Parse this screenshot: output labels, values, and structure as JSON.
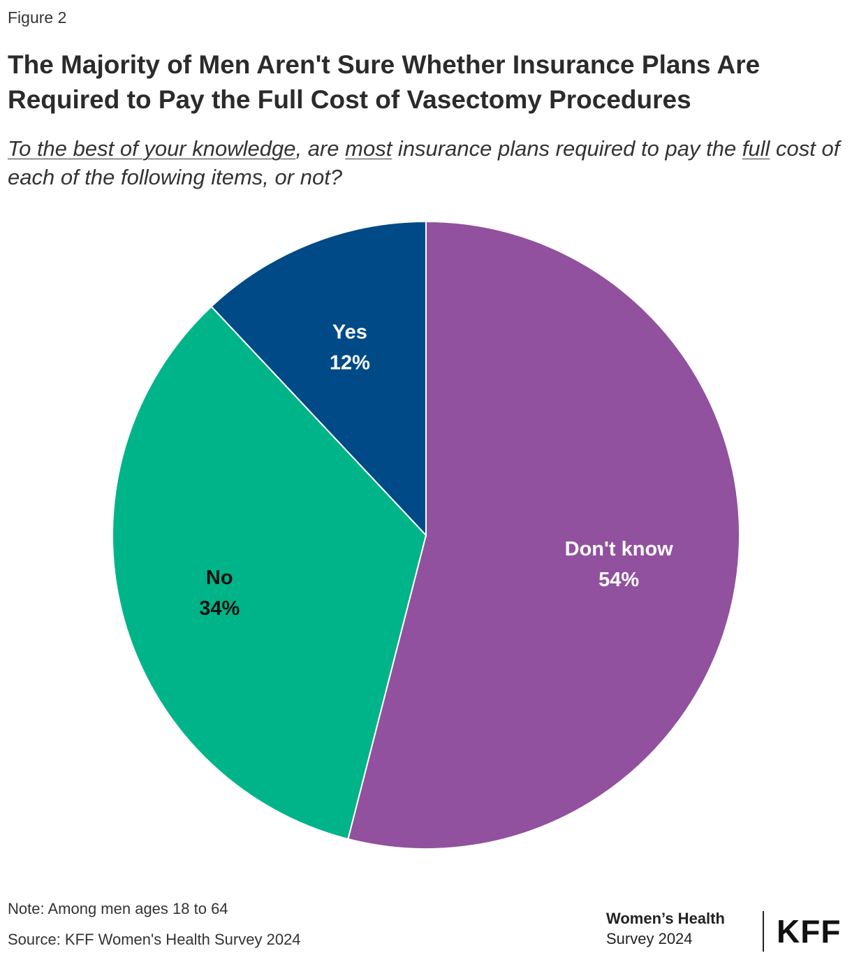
{
  "figure_label": "Figure 2",
  "title": "The Majority of Men Aren't Sure Whether Insurance Plans Are Required to Pay the Full Cost of Vasectomy Procedures",
  "subtitle": {
    "part1": "To the best of your knowledge",
    "part2": ", are ",
    "part3": "most",
    "part4": " insurance plans required to pay the ",
    "part5": "full",
    "part6": " cost of each of the following items, or not?"
  },
  "chart_data": {
    "type": "pie",
    "slices": [
      {
        "label": "Don't know",
        "value": 54,
        "value_label": "54%",
        "color": "#91519e",
        "text_color": "#ffffff"
      },
      {
        "label": "No",
        "value": 34,
        "value_label": "34%",
        "color": "#00b489",
        "text_color": "#111111"
      },
      {
        "label": "Yes",
        "value": 12,
        "value_label": "12%",
        "color": "#004a87",
        "text_color": "#ffffff"
      }
    ],
    "start": "12 o'clock",
    "direction": "clockwise"
  },
  "footer": {
    "note": "Note: Among men ages 18 to 64",
    "source": "Source: KFF Women's Health Survey 2024",
    "brand_line1": "Women’s Health",
    "brand_line2": "Survey 2024",
    "logo_text": "KFF"
  }
}
